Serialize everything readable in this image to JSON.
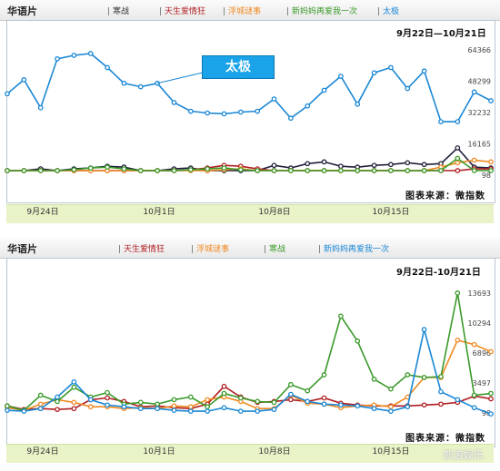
{
  "colors": {
    "series": [
      "#1a87d5",
      "#1f1f3a",
      "#b01e22",
      "#f08a22",
      "#3a9a2a"
    ]
  },
  "panels": [
    {
      "title": "华语片",
      "legend": [
        "寒战",
        "天生爱情狂",
        "浮城谜事",
        "新妈妈再爱我一次",
        "太极"
      ],
      "legend_colors": [
        "#333333",
        "#b01e22",
        "#f08a22",
        "#3a9a2a",
        "#1a87d5"
      ],
      "range_label": "9月22日—10月21日",
      "source_label": "图表来源：微指数",
      "callout": "太极"
    },
    {
      "title": "华语片",
      "legend": [
        "天生爱情狂",
        "浮城谜事",
        "寒战",
        "新妈妈再爱我一次"
      ],
      "legend_colors": [
        "#b01e22",
        "#f08a22",
        "#3a9a2a",
        "#1a87d5"
      ],
      "range_label": "9月22日-10月21日",
      "source_label": "图表来源：微指数",
      "watermark": "新浪娱乐"
    }
  ],
  "chart_data": [
    {
      "type": "line",
      "title": "华语片",
      "subtitle": "9月22日—10月21日",
      "x": [
        "9月22日",
        "9月23日",
        "9月24日",
        "9月25日",
        "9月26日",
        "9月27日",
        "9月28日",
        "9月29日",
        "9月30日",
        "10月1日",
        "10月2日",
        "10月3日",
        "10月4日",
        "10月5日",
        "10月6日",
        "10月7日",
        "10月8日",
        "10月9日",
        "10月10日",
        "10月11日",
        "10月12日",
        "10月13日",
        "10月14日",
        "10月15日",
        "10月16日",
        "10月17日",
        "10月18日",
        "10月19日",
        "10月20日",
        "10月21日"
      ],
      "xticks": [
        "9月24日",
        "10月1日",
        "10月8日",
        "10月15日"
      ],
      "yticks": [
        98,
        16165,
        32232,
        48299,
        64366
      ],
      "ylim": [
        0,
        80000
      ],
      "series": [
        {
          "name": "太极",
          "color": "#1a87d5",
          "values": [
            44000,
            52000,
            36000,
            64000,
            66000,
            67000,
            59000,
            50000,
            48000,
            50000,
            39000,
            34000,
            33000,
            32500,
            33500,
            34000,
            41000,
            30000,
            37000,
            46000,
            54000,
            38000,
            56000,
            59000,
            47000,
            57000,
            28000,
            28000,
            45000,
            40000
          ]
        },
        {
          "name": "寒战",
          "color": "#1f1f3a",
          "values": [
            0,
            0,
            1000,
            0,
            1000,
            1500,
            2500,
            2000,
            0,
            0,
            1000,
            1500,
            0,
            0,
            0,
            0,
            3000,
            1500,
            4000,
            5000,
            2500,
            2000,
            3000,
            3500,
            4500,
            3500,
            4000,
            13000,
            2000,
            1500
          ]
        },
        {
          "name": "天生爱情狂",
          "color": "#b01e22",
          "values": [
            0,
            0,
            0,
            0,
            0,
            0,
            0,
            0,
            0,
            0,
            0,
            500,
            1500,
            3000,
            2500,
            1000,
            0,
            0,
            0,
            0,
            0,
            0,
            0,
            0,
            0,
            0,
            0,
            0,
            1000,
            1000
          ]
        },
        {
          "name": "浮城谜事",
          "color": "#f08a22",
          "values": [
            0,
            0,
            0,
            0,
            0,
            0,
            0,
            0,
            0,
            0,
            0,
            0,
            0,
            500,
            1000,
            0,
            0,
            0,
            0,
            0,
            0,
            0,
            0,
            0,
            0,
            0,
            2000,
            4500,
            6000,
            5000
          ]
        },
        {
          "name": "新妈妈再爱我一次",
          "color": "#3a9a2a",
          "values": [
            0,
            0,
            0,
            0,
            500,
            1500,
            2000,
            1000,
            0,
            0,
            0,
            500,
            1000,
            1500,
            500,
            0,
            0,
            0,
            0,
            0,
            0,
            0,
            0,
            0,
            0,
            0,
            0,
            7000,
            0,
            0
          ]
        }
      ]
    },
    {
      "type": "line",
      "title": "华语片",
      "subtitle": "9月22日-10月21日",
      "x": [
        "9月22日",
        "9月23日",
        "9月24日",
        "9月25日",
        "9月26日",
        "9月27日",
        "9月28日",
        "9月29日",
        "9月30日",
        "10月1日",
        "10月2日",
        "10月3日",
        "10月4日",
        "10月5日",
        "10月6日",
        "10月7日",
        "10月8日",
        "10月9日",
        "10月10日",
        "10月11日",
        "10月12日",
        "10月13日",
        "10月14日",
        "10月15日",
        "10月16日",
        "10月17日",
        "10月18日",
        "10月19日",
        "10月20日",
        "10月21日"
      ],
      "xticks": [
        "9月24日",
        "10月1日",
        "10月8日",
        "10月15日"
      ],
      "yticks": [
        98,
        3497,
        6896,
        10294,
        13693
      ],
      "ylim": [
        0,
        14500
      ],
      "series": [
        {
          "name": "天生爱情狂",
          "color": "#b01e22",
          "values": [
            1300,
            900,
            1000,
            900,
            1000,
            2000,
            2200,
            1800,
            1200,
            1300,
            1100,
            1000,
            1500,
            3500,
            2300,
            1700,
            1800,
            2000,
            1800,
            2200,
            1600,
            1400,
            1300,
            1300,
            1300,
            1400,
            1500,
            1700,
            2400,
            2100
          ]
        },
        {
          "name": "浮城谜事",
          "color": "#f08a22",
          "values": [
            1100,
            800,
            1500,
            2000,
            1700,
            1200,
            1200,
            1000,
            1100,
            1000,
            1300,
            1200,
            2000,
            2300,
            1800,
            1000,
            1000,
            2500,
            1600,
            1500,
            1100,
            1300,
            1400,
            1200,
            2300,
            4500,
            4500,
            8700,
            8200,
            7400
          ]
        },
        {
          "name": "寒战",
          "color": "#3a9a2a",
          "values": [
            1300,
            800,
            2500,
            1800,
            3400,
            2300,
            2800,
            1500,
            1700,
            1500,
            2000,
            2300,
            1200,
            2700,
            2200,
            1800,
            1700,
            3700,
            3000,
            4800,
            11400,
            8600,
            4300,
            3200,
            4800,
            4500,
            4600,
            14000,
            2500,
            2700
          ]
        },
        {
          "name": "新妈妈再爱我一次",
          "color": "#1a87d5",
          "values": [
            800,
            700,
            1000,
            2300,
            4000,
            2000,
            1400,
            1200,
            1000,
            1000,
            800,
            700,
            700,
            1100,
            700,
            700,
            900,
            2600,
            1800,
            1500,
            1400,
            1300,
            1000,
            700,
            1200,
            9900,
            2900,
            2000,
            1100,
            400
          ]
        }
      ]
    }
  ]
}
